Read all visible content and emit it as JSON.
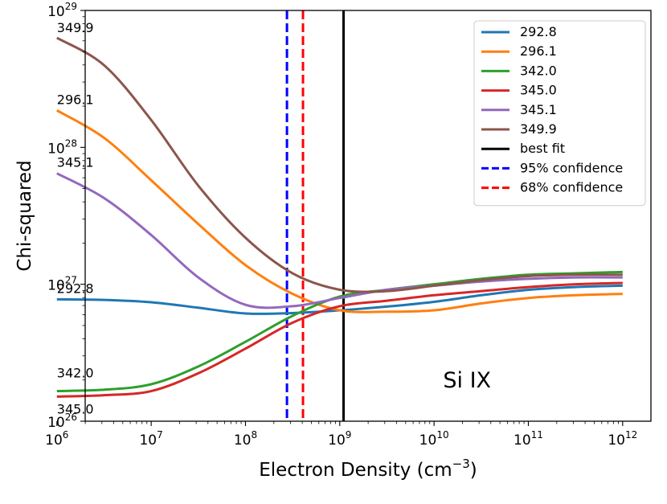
{
  "chart_data": {
    "type": "line",
    "xscale": "log",
    "yscale": "log",
    "xlabel": "Electron Density (cm",
    "xlabel_unit_exponent": "−3",
    "xlabel_suffix": ")",
    "ylabel": "Chi-squared",
    "xlim": [
      6.3,
      12.3
    ],
    "ylim": [
      26,
      29
    ],
    "x_ticks": [
      {
        "base": "10",
        "exp": "6",
        "value": 6
      },
      {
        "base": "10",
        "exp": "7",
        "value": 7
      },
      {
        "base": "10",
        "exp": "8",
        "value": 8
      },
      {
        "base": "10",
        "exp": "9",
        "value": 9
      },
      {
        "base": "10",
        "exp": "10",
        "value": 10
      },
      {
        "base": "10",
        "exp": "11",
        "value": 11
      },
      {
        "base": "10",
        "exp": "12",
        "value": 12
      }
    ],
    "y_ticks": [
      {
        "base": "10",
        "exp": "26",
        "value": 26
      },
      {
        "base": "10",
        "exp": "27",
        "value": 27
      },
      {
        "base": "10",
        "exp": "28",
        "value": 28
      },
      {
        "base": "10",
        "exp": "29",
        "value": 29
      }
    ],
    "annotation": "Si IX",
    "series": [
      {
        "name": "292.8",
        "color": "#1f77b4",
        "label_at_start": "292.8",
        "log_x": [
          6,
          6.5,
          7,
          7.5,
          8,
          8.5,
          9,
          9.5,
          10,
          10.5,
          11,
          11.5,
          12
        ],
        "log_y": [
          26.89,
          26.886,
          26.869,
          26.829,
          26.787,
          26.79,
          26.81,
          26.837,
          26.872,
          26.92,
          26.96,
          26.98,
          26.99
        ]
      },
      {
        "name": "296.1",
        "color": "#ff7f0e",
        "label_at_start": "296.1",
        "log_x": [
          6,
          6.5,
          7,
          7.5,
          8,
          8.5,
          9,
          9.5,
          10,
          10.5,
          11,
          11.5,
          12
        ],
        "log_y": [
          28.27,
          28.07,
          27.76,
          27.44,
          27.14,
          26.93,
          26.81,
          26.8,
          26.81,
          26.86,
          26.9,
          26.92,
          26.93
        ]
      },
      {
        "name": "342.0",
        "color": "#2ca02c",
        "label_at_start": "342.0",
        "log_x": [
          6,
          6.5,
          7,
          7.5,
          8,
          8.5,
          9,
          9.5,
          10,
          10.5,
          11,
          11.5,
          12
        ],
        "log_y": [
          26.22,
          26.23,
          26.27,
          26.4,
          26.58,
          26.77,
          26.91,
          26.96,
          27.0,
          27.04,
          27.07,
          27.08,
          27.09
        ]
      },
      {
        "name": "345.0",
        "color": "#d62728",
        "label_at_start": "345.0",
        "log_x": [
          6,
          6.5,
          7,
          7.5,
          8,
          8.5,
          9,
          9.5,
          10,
          10.5,
          11,
          11.5,
          12
        ],
        "log_y": [
          26.18,
          26.19,
          26.22,
          26.35,
          26.53,
          26.72,
          26.84,
          26.88,
          26.92,
          26.95,
          26.98,
          27.0,
          27.01
        ]
      },
      {
        "name": "345.1",
        "color": "#9467bd",
        "label_at_start": "345.1",
        "log_x": [
          6,
          6.5,
          7,
          7.5,
          8,
          8.5,
          9,
          9.5,
          10,
          10.5,
          11,
          11.5,
          12
        ],
        "log_y": [
          27.81,
          27.63,
          27.36,
          27.05,
          26.85,
          26.84,
          26.9,
          26.96,
          26.99,
          27.02,
          27.04,
          27.05,
          27.05
        ]
      },
      {
        "name": "349.9",
        "color": "#8c564b",
        "label_at_start": "349.9",
        "log_x": [
          6,
          6.5,
          7,
          7.5,
          8,
          8.5,
          9,
          9.5,
          10,
          10.5,
          11,
          11.5,
          12
        ],
        "log_y": [
          28.8,
          28.6,
          28.2,
          27.72,
          27.34,
          27.08,
          26.96,
          26.95,
          26.99,
          27.03,
          27.06,
          27.07,
          27.07
        ]
      }
    ],
    "vlines": [
      {
        "name": "best fit",
        "log_x": 9.04,
        "color": "#000000",
        "style": "solid"
      },
      {
        "name": "95% confidence",
        "log_x": 8.44,
        "color": "#0000ff",
        "style": "dashed"
      },
      {
        "name": "68% confidence",
        "log_x": 8.61,
        "color": "#ff0000",
        "style": "dashed"
      }
    ],
    "legend": {
      "location": "top-right",
      "entries": [
        {
          "label": "292.8",
          "color": "#1f77b4",
          "style": "solid"
        },
        {
          "label": "296.1",
          "color": "#ff7f0e",
          "style": "solid"
        },
        {
          "label": "342.0",
          "color": "#2ca02c",
          "style": "solid"
        },
        {
          "label": "345.0",
          "color": "#d62728",
          "style": "solid"
        },
        {
          "label": "345.1",
          "color": "#9467bd",
          "style": "solid"
        },
        {
          "label": "349.9",
          "color": "#8c564b",
          "style": "solid"
        },
        {
          "label": "best fit",
          "color": "#000000",
          "style": "solid"
        },
        {
          "label": "95% confidence",
          "color": "#0000ff",
          "style": "dashed"
        },
        {
          "label": "68% confidence",
          "color": "#ff0000",
          "style": "dashed"
        }
      ]
    }
  }
}
